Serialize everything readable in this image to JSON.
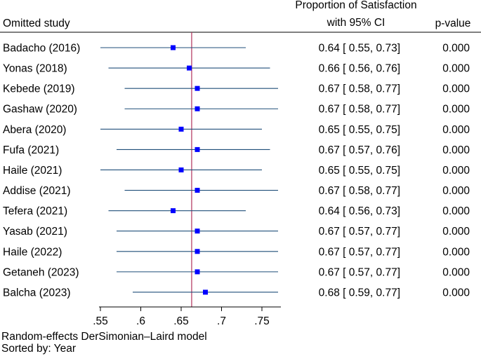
{
  "chart_data": {
    "type": "forest",
    "title": "",
    "header": {
      "study_col": "Omitted study",
      "effect_col_line1": "Proportion of Satisfaction",
      "effect_col_line2": "with 95% CI",
      "p_col": "p-value"
    },
    "studies": [
      {
        "label": "Badacho (2016)",
        "est": 0.64,
        "lo": 0.55,
        "hi": 0.73,
        "ci_text": "0.64 [ 0.55,  0.73]",
        "p": "0.000"
      },
      {
        "label": "Yonas (2018)",
        "est": 0.66,
        "lo": 0.56,
        "hi": 0.76,
        "ci_text": "0.66 [ 0.56,  0.76]",
        "p": "0.000"
      },
      {
        "label": "Kebede (2019)",
        "est": 0.67,
        "lo": 0.58,
        "hi": 0.77,
        "ci_text": "0.67 [ 0.58,  0.77]",
        "p": "0.000"
      },
      {
        "label": "Gashaw (2020)",
        "est": 0.67,
        "lo": 0.58,
        "hi": 0.77,
        "ci_text": "0.67 [ 0.58,  0.77]",
        "p": "0.000"
      },
      {
        "label": "Abera (2020)",
        "est": 0.65,
        "lo": 0.55,
        "hi": 0.75,
        "ci_text": "0.65 [ 0.55,  0.75]",
        "p": "0.000"
      },
      {
        "label": "Fufa (2021)",
        "est": 0.67,
        "lo": 0.57,
        "hi": 0.76,
        "ci_text": "0.67 [ 0.57,  0.76]",
        "p": "0.000"
      },
      {
        "label": "Haile (2021)",
        "est": 0.65,
        "lo": 0.55,
        "hi": 0.75,
        "ci_text": "0.65 [ 0.55,  0.75]",
        "p": "0.000"
      },
      {
        "label": "Addise (2021)",
        "est": 0.67,
        "lo": 0.58,
        "hi": 0.77,
        "ci_text": "0.67 [ 0.58,  0.77]",
        "p": "0.000"
      },
      {
        "label": "Tefera (2021)",
        "est": 0.64,
        "lo": 0.56,
        "hi": 0.73,
        "ci_text": "0.64 [ 0.56,  0.73]",
        "p": "0.000"
      },
      {
        "label": "Yasab (2021)",
        "est": 0.67,
        "lo": 0.57,
        "hi": 0.77,
        "ci_text": "0.67 [ 0.57,  0.77]",
        "p": "0.000"
      },
      {
        "label": "Haile (2022)",
        "est": 0.67,
        "lo": 0.57,
        "hi": 0.77,
        "ci_text": "0.67 [ 0.57,  0.77]",
        "p": "0.000"
      },
      {
        "label": "Getaneh (2023)",
        "est": 0.67,
        "lo": 0.57,
        "hi": 0.77,
        "ci_text": "0.67 [ 0.57,  0.77]",
        "p": "0.000"
      },
      {
        "label": "Balcha (2023)",
        "est": 0.68,
        "lo": 0.59,
        "hi": 0.77,
        "ci_text": "0.68 [ 0.59,  0.77]",
        "p": "0.000"
      }
    ],
    "reference_line": 0.663,
    "xlim": [
      0.55,
      0.77
    ],
    "xticks": [
      0.55,
      0.6,
      0.65,
      0.7,
      0.75
    ],
    "xtick_labels": [
      ".55",
      ".6",
      ".65",
      ".7",
      ".75"
    ],
    "colors": {
      "marker": "#0000ff",
      "ci_line": "#1f4e79",
      "ref_line": "#b0305a",
      "axis": "#000000"
    }
  },
  "footer": {
    "model_note": "Random-effects DerSimonian–Laird model",
    "sort_note": "Sorted by: Year"
  }
}
